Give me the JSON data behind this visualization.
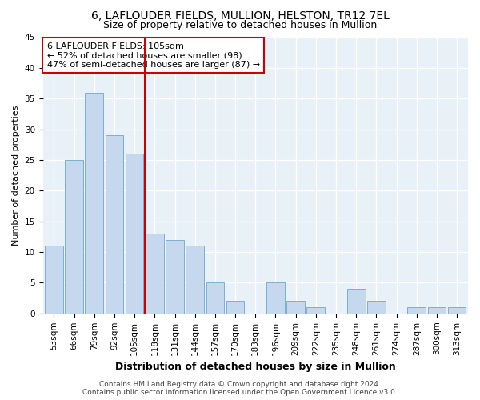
{
  "title1": "6, LAFLOUDER FIELDS, MULLION, HELSTON, TR12 7EL",
  "title2": "Size of property relative to detached houses in Mullion",
  "xlabel": "Distribution of detached houses by size in Mullion",
  "ylabel": "Number of detached properties",
  "categories": [
    "53sqm",
    "66sqm",
    "79sqm",
    "92sqm",
    "105sqm",
    "118sqm",
    "131sqm",
    "144sqm",
    "157sqm",
    "170sqm",
    "183sqm",
    "196sqm",
    "209sqm",
    "222sqm",
    "235sqm",
    "248sqm",
    "261sqm",
    "274sqm",
    "287sqm",
    "300sqm",
    "313sqm"
  ],
  "values": [
    11,
    25,
    36,
    29,
    26,
    13,
    12,
    11,
    5,
    2,
    0,
    5,
    2,
    1,
    0,
    4,
    2,
    0,
    1,
    1,
    1
  ],
  "bar_color": "#c5d8ee",
  "bar_edge_color": "#7aafd4",
  "vline_x_pos": 4.5,
  "vline_color": "#cc0000",
  "annotation_text": "6 LAFLOUDER FIELDS: 105sqm\n← 52% of detached houses are smaller (98)\n47% of semi-detached houses are larger (87) →",
  "annotation_box_color": "#ffffff",
  "annotation_box_edge_color": "#cc0000",
  "ylim": [
    0,
    45
  ],
  "yticks": [
    0,
    5,
    10,
    15,
    20,
    25,
    30,
    35,
    40,
    45
  ],
  "footer1": "Contains HM Land Registry data © Crown copyright and database right 2024.",
  "footer2": "Contains public sector information licensed under the Open Government Licence v3.0.",
  "figure_bg_color": "#ffffff",
  "axes_bg_color": "#e8f0f8",
  "grid_color": "#ffffff",
  "title1_fontsize": 10,
  "title2_fontsize": 9,
  "xlabel_fontsize": 9,
  "ylabel_fontsize": 8,
  "tick_fontsize": 7.5,
  "annotation_fontsize": 8,
  "footer_fontsize": 6.5
}
